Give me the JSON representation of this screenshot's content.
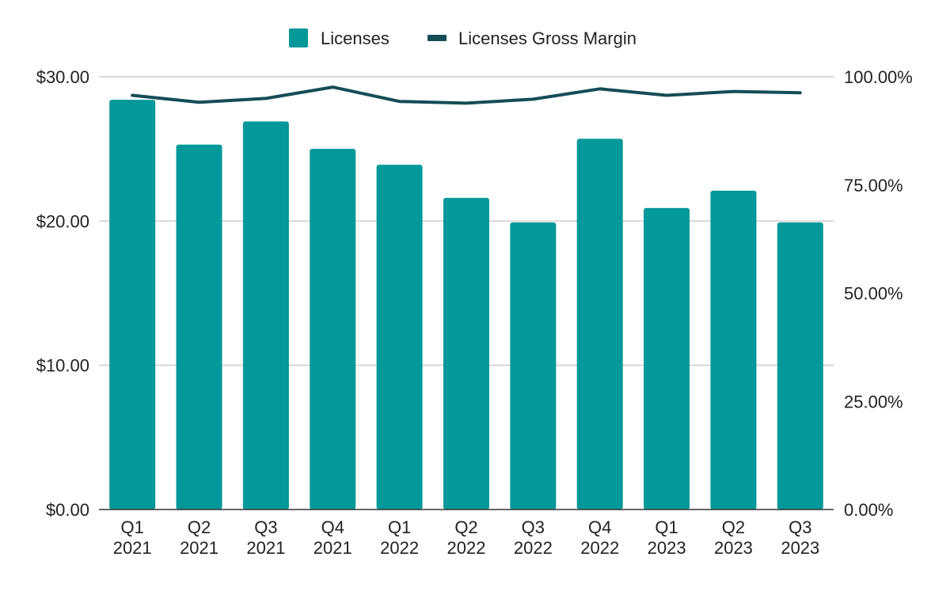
{
  "chart_data": {
    "type": "bar",
    "categories": [
      [
        "Q1",
        "2021"
      ],
      [
        "Q2",
        "2021"
      ],
      [
        "Q3",
        "2021"
      ],
      [
        "Q4",
        "2021"
      ],
      [
        "Q1",
        "2022"
      ],
      [
        "Q2",
        "2022"
      ],
      [
        "Q3",
        "2022"
      ],
      [
        "Q4",
        "2022"
      ],
      [
        "Q1",
        "2023"
      ],
      [
        "Q2",
        "2023"
      ],
      [
        "Q3",
        "2023"
      ]
    ],
    "series": [
      {
        "name": "Licenses",
        "type": "bar",
        "axis": "left",
        "color": "#039899",
        "values": [
          28.4,
          25.3,
          26.9,
          25.0,
          23.9,
          21.6,
          19.9,
          25.7,
          20.9,
          22.1,
          19.9
        ]
      },
      {
        "name": "Licenses Gross Margin",
        "type": "line",
        "axis": "right",
        "color": "#144d56",
        "values": [
          95.7,
          94.1,
          95.0,
          97.6,
          94.3,
          93.9,
          94.8,
          97.2,
          95.7,
          96.6,
          96.3
        ]
      }
    ],
    "y_left": {
      "range": [
        0,
        30
      ],
      "ticks": [
        0,
        10,
        20,
        30
      ],
      "tick_labels": [
        "$0.00",
        "$10.00",
        "$20.00",
        "$30.00"
      ]
    },
    "y_right": {
      "range": [
        0,
        100
      ],
      "ticks": [
        0,
        25,
        50,
        75,
        100
      ],
      "tick_labels": [
        "0.00%",
        "25.00%",
        "50.00%",
        "75.00%",
        "100.00%"
      ]
    },
    "grid": true,
    "grid_color": "#cccccc",
    "legend_position": "top-center",
    "title": "",
    "xlabel": "",
    "ylabel": ""
  }
}
